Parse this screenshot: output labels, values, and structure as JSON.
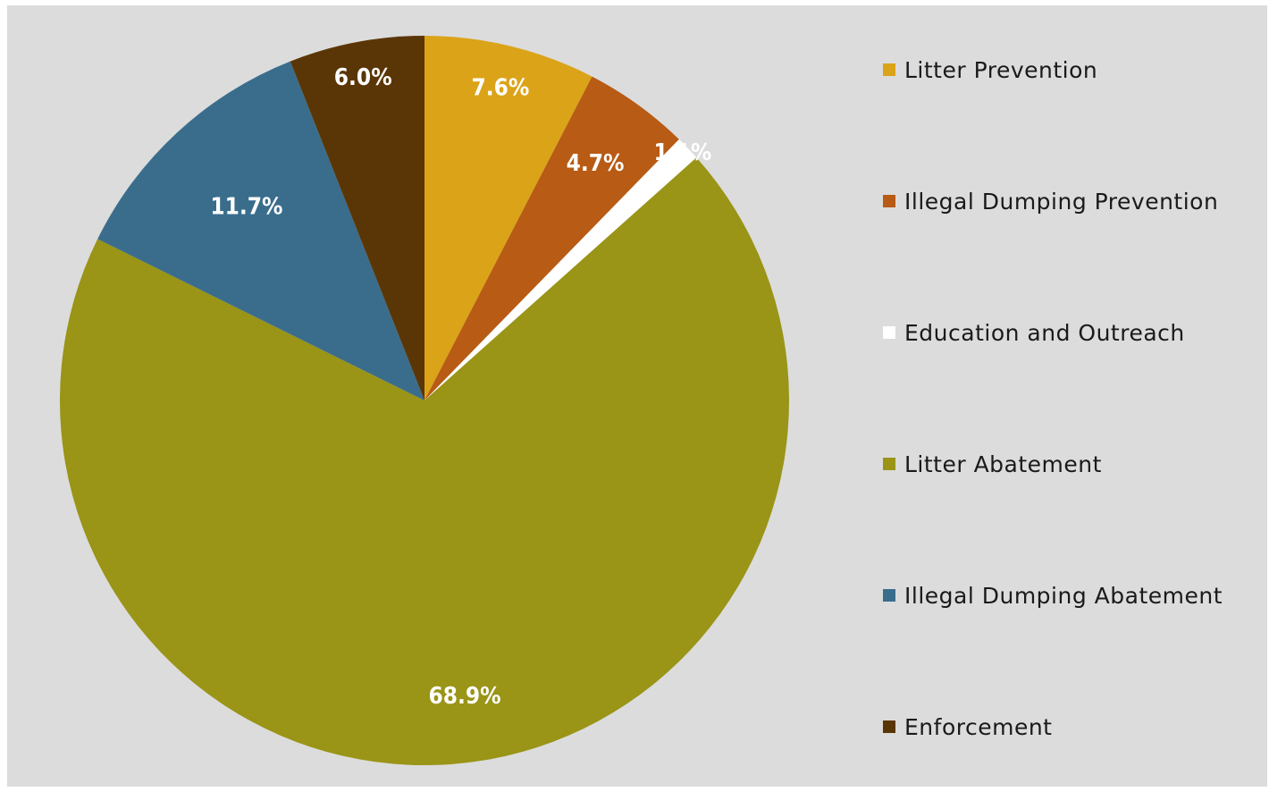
{
  "chart_data": {
    "type": "pie",
    "title": "",
    "start_angle": "12 o'clock",
    "direction": "clockwise",
    "legend_position": "right",
    "slices": [
      {
        "name": "Litter Prevention",
        "value": 7.6,
        "label": "7.6%",
        "color": "#dba318"
      },
      {
        "name": "Illegal Dumping Prevention",
        "value": 4.7,
        "label": "4.7%",
        "color": "#b85b14"
      },
      {
        "name": "Education and Outreach",
        "value": 1.1,
        "label": "1.1%",
        "color": "#ffffff"
      },
      {
        "name": "Litter Abatement",
        "value": 68.9,
        "label": "68.9%",
        "color": "#9a9417"
      },
      {
        "name": "Illegal Dumping Abatement",
        "value": 11.7,
        "label": "11.7%",
        "color": "#3a6d8c"
      },
      {
        "name": "Enforcement",
        "value": 6.0,
        "label": "6.0%",
        "color": "#5a3607"
      }
    ]
  }
}
